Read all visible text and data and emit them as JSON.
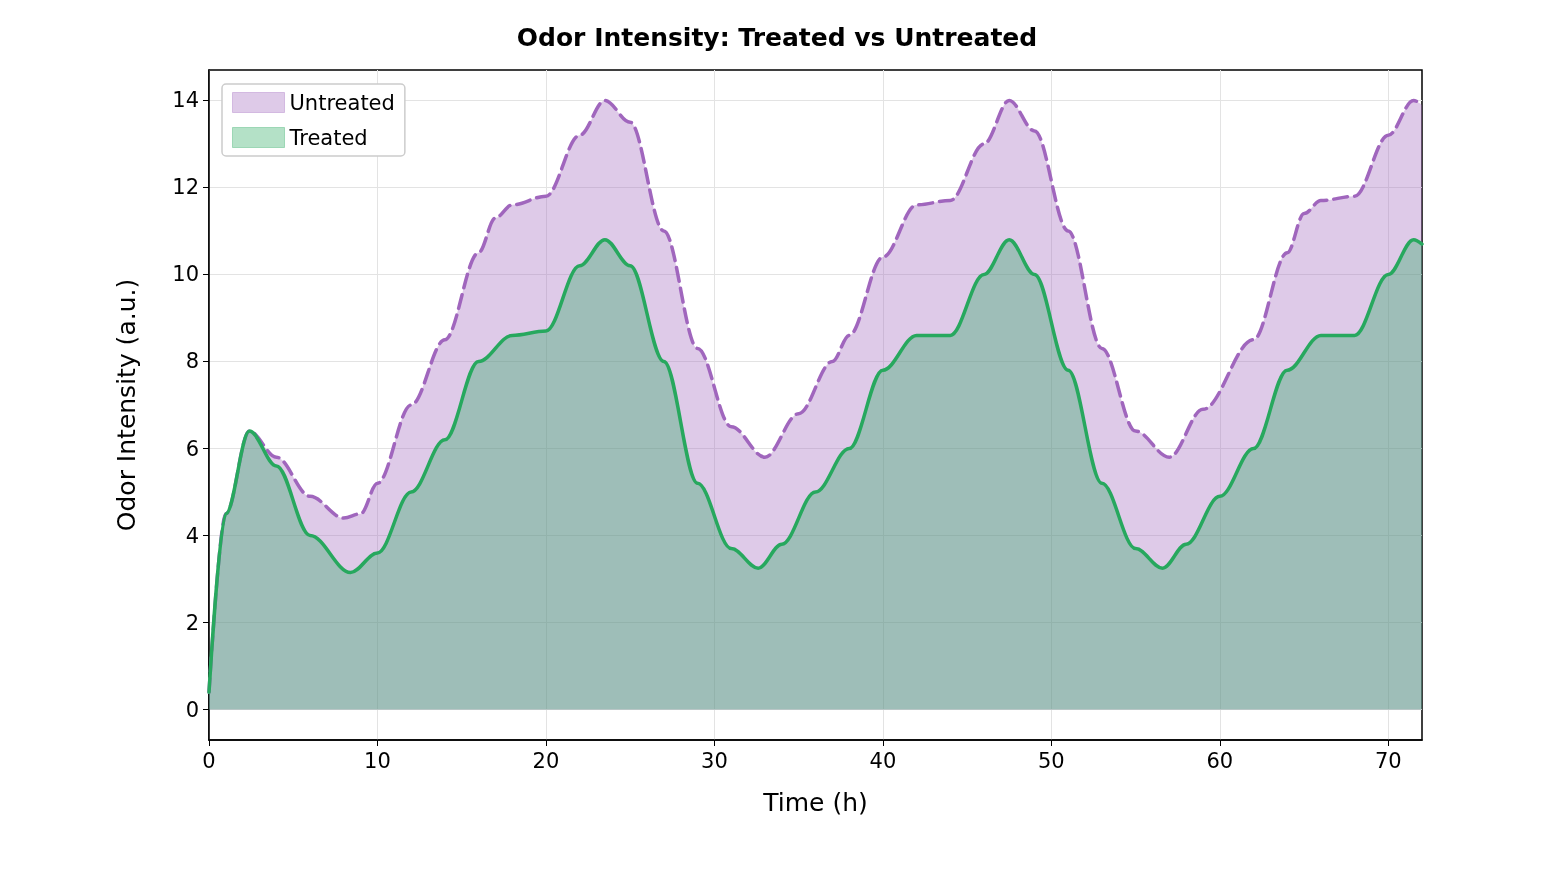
{
  "chart_data": {
    "type": "area",
    "title": "Odor Intensity: Treated vs Untreated",
    "xlabel": "Time (h)",
    "ylabel": "Odor Intensity (a.u.)",
    "xlim": [
      0,
      72
    ],
    "ylim": [
      -0.7,
      14.7
    ],
    "xticks": [
      0,
      10,
      20,
      30,
      40,
      50,
      60,
      70
    ],
    "yticks": [
      0,
      2,
      4,
      6,
      8,
      10,
      12,
      14
    ],
    "grid": true,
    "legend": "top left",
    "marker": "none",
    "series": [
      {
        "name": "Untreated",
        "color": "#a066bd",
        "line_style": "dashed",
        "x": [
          0,
          1,
          2.4,
          4,
          6,
          8,
          9,
          10,
          12,
          14,
          16,
          17,
          18,
          20,
          22,
          23.5,
          25,
          27,
          29,
          31,
          33,
          35,
          37,
          38,
          40,
          42,
          44,
          46,
          47.5,
          49,
          51,
          53,
          55,
          57,
          59,
          62,
          64,
          65,
          66,
          68,
          70,
          71.5,
          72
        ],
        "values": [
          0.4,
          4.5,
          6.4,
          5.8,
          4.9,
          4.4,
          4.5,
          5.2,
          7.0,
          8.5,
          10.5,
          11.3,
          11.6,
          11.8,
          13.2,
          14.0,
          13.5,
          11.0,
          8.3,
          6.5,
          5.8,
          6.8,
          8.0,
          8.6,
          10.4,
          11.6,
          11.7,
          13.0,
          14.0,
          13.3,
          11.0,
          8.3,
          6.4,
          5.8,
          6.9,
          8.5,
          10.5,
          11.4,
          11.7,
          11.8,
          13.2,
          14.0,
          13.9
        ]
      },
      {
        "name": "Treated",
        "color": "#27a85e",
        "line_style": "solid",
        "x": [
          0,
          1,
          2.4,
          4,
          6,
          8.4,
          10,
          12,
          14,
          16,
          18,
          20,
          22,
          23.5,
          25,
          27,
          29,
          31,
          32.6,
          34,
          36,
          38,
          40,
          42,
          44,
          46,
          47.5,
          49,
          51,
          53,
          55,
          56.6,
          58,
          60,
          62,
          64,
          66,
          68,
          70,
          71.5,
          72
        ],
        "values": [
          0.4,
          4.5,
          6.4,
          5.6,
          4.0,
          3.15,
          3.6,
          5.0,
          6.2,
          8.0,
          8.6,
          8.7,
          10.2,
          10.8,
          10.2,
          8.0,
          5.2,
          3.7,
          3.25,
          3.8,
          5.0,
          6.0,
          7.8,
          8.6,
          8.6,
          10.0,
          10.8,
          10.0,
          7.8,
          5.2,
          3.7,
          3.25,
          3.8,
          4.9,
          6.0,
          7.8,
          8.6,
          8.6,
          10.0,
          10.8,
          10.7
        ]
      }
    ]
  }
}
